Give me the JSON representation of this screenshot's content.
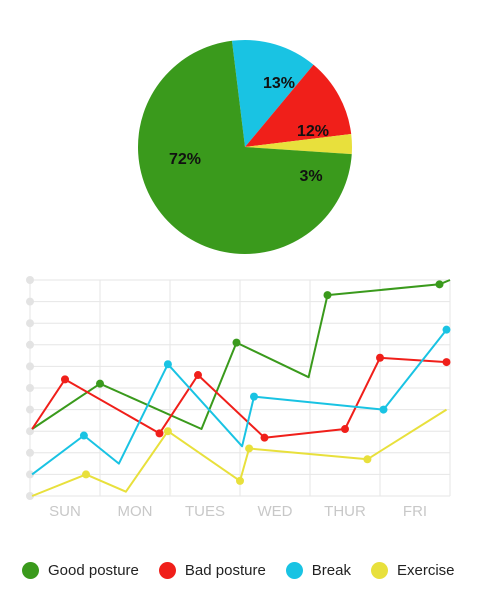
{
  "chart_data": [
    {
      "type": "pie",
      "title": "",
      "slices": [
        {
          "label": "Good posture",
          "display": "72%",
          "value": 72,
          "color": "#3a9a1c"
        },
        {
          "label": "Break",
          "display": "13%",
          "value": 13,
          "color": "#19c3e3"
        },
        {
          "label": "Bad posture",
          "display": "12%",
          "value": 12,
          "color": "#f01f1a"
        },
        {
          "label": "Exercise",
          "display": "3%",
          "value": 3,
          "color": "#e8e03c"
        }
      ]
    },
    {
      "type": "line",
      "title": "",
      "xlabel": "",
      "ylabel": "",
      "x_range": [
        0,
        6
      ],
      "ylim": [
        0,
        10
      ],
      "grid": true,
      "categories": [
        "SUN",
        "MON",
        "TUES",
        "WED",
        "THUR",
        "FRI"
      ],
      "series": [
        {
          "name": "Good posture",
          "color": "#3a9a1c",
          "points": [
            [
              0.03,
              3.1
            ],
            [
              1.0,
              5.2
            ],
            [
              2.45,
              3.1
            ],
            [
              2.95,
              7.1
            ],
            [
              3.98,
              5.5
            ],
            [
              4.25,
              9.3
            ],
            [
              5.85,
              9.8
            ],
            [
              6.0,
              10.0
            ]
          ],
          "markers": [
            1,
            3,
            5,
            6
          ]
        },
        {
          "name": "Bad posture",
          "color": "#f01f1a",
          "points": [
            [
              0.03,
              3.1
            ],
            [
              0.5,
              5.4
            ],
            [
              1.85,
              2.9
            ],
            [
              2.4,
              5.6
            ],
            [
              3.35,
              2.7
            ],
            [
              4.5,
              3.1
            ],
            [
              5.0,
              6.4
            ],
            [
              5.95,
              6.2
            ]
          ],
          "markers": [
            1,
            2,
            3,
            4,
            5,
            6,
            7
          ]
        },
        {
          "name": "Break",
          "color": "#19c3e3",
          "points": [
            [
              0.03,
              1.0
            ],
            [
              0.77,
              2.8
            ],
            [
              1.27,
              1.5
            ],
            [
              1.97,
              6.1
            ],
            [
              3.03,
              2.3
            ],
            [
              3.2,
              4.6
            ],
            [
              5.05,
              4.0
            ],
            [
              5.95,
              7.7
            ]
          ],
          "markers": [
            1,
            3,
            5,
            6,
            7
          ]
        },
        {
          "name": "Exercise",
          "color": "#e8e03c",
          "points": [
            [
              0.03,
              0.0
            ],
            [
              0.8,
              1.0
            ],
            [
              1.37,
              0.2
            ],
            [
              1.97,
              3.0
            ],
            [
              3.0,
              0.7
            ],
            [
              3.13,
              2.2
            ],
            [
              4.82,
              1.7
            ],
            [
              5.95,
              4.0
            ]
          ],
          "markers": [
            1,
            3,
            4,
            5,
            6
          ]
        }
      ]
    }
  ]
}
